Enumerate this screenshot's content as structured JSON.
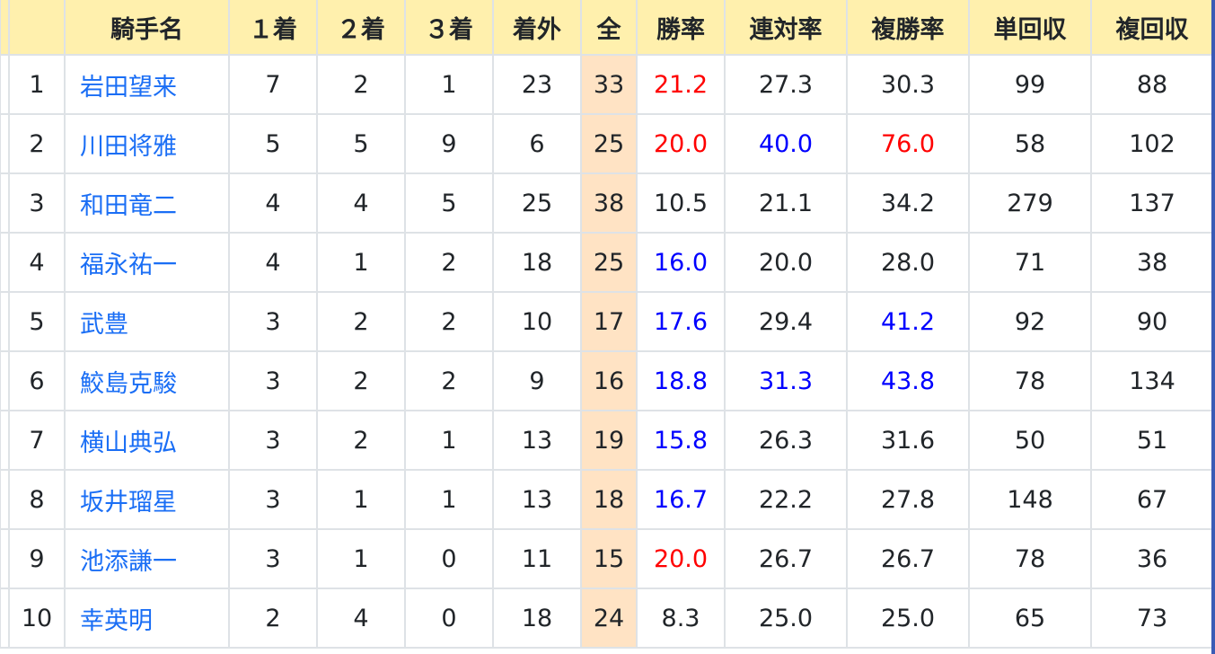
{
  "table": {
    "headers": [
      "",
      "騎手名",
      "１着",
      "２着",
      "３着",
      "着外",
      "全",
      "勝率",
      "連対率",
      "複勝率",
      "単回収",
      "複回収"
    ],
    "colors": {
      "red": "#ff0000",
      "blue": "#0000ff",
      "link": "#1a6ef5",
      "header_bg": "#fff0ad",
      "total_bg": "#ffe3c4"
    },
    "rows": [
      {
        "rank": "1",
        "name": "岩田望来",
        "w1": "7",
        "w2": "2",
        "w3": "1",
        "out": "23",
        "all": "33",
        "win": "21.2",
        "win_c": "red",
        "ren": "27.3",
        "ren_c": "",
        "fuku": "30.3",
        "fuku_c": "",
        "tan": "99",
        "fret": "88"
      },
      {
        "rank": "2",
        "name": "川田将雅",
        "w1": "5",
        "w2": "5",
        "w3": "9",
        "out": "6",
        "all": "25",
        "win": "20.0",
        "win_c": "red",
        "ren": "40.0",
        "ren_c": "blue",
        "fuku": "76.0",
        "fuku_c": "red",
        "tan": "58",
        "fret": "102"
      },
      {
        "rank": "3",
        "name": "和田竜二",
        "w1": "4",
        "w2": "4",
        "w3": "5",
        "out": "25",
        "all": "38",
        "win": "10.5",
        "win_c": "",
        "ren": "21.1",
        "ren_c": "",
        "fuku": "34.2",
        "fuku_c": "",
        "tan": "279",
        "fret": "137"
      },
      {
        "rank": "4",
        "name": "福永祐一",
        "w1": "4",
        "w2": "1",
        "w3": "2",
        "out": "18",
        "all": "25",
        "win": "16.0",
        "win_c": "blue",
        "ren": "20.0",
        "ren_c": "",
        "fuku": "28.0",
        "fuku_c": "",
        "tan": "71",
        "fret": "38"
      },
      {
        "rank": "5",
        "name": "武豊",
        "w1": "3",
        "w2": "2",
        "w3": "2",
        "out": "10",
        "all": "17",
        "win": "17.6",
        "win_c": "blue",
        "ren": "29.4",
        "ren_c": "",
        "fuku": "41.2",
        "fuku_c": "blue",
        "tan": "92",
        "fret": "90"
      },
      {
        "rank": "6",
        "name": "鮫島克駿",
        "w1": "3",
        "w2": "2",
        "w3": "2",
        "out": "9",
        "all": "16",
        "win": "18.8",
        "win_c": "blue",
        "ren": "31.3",
        "ren_c": "blue",
        "fuku": "43.8",
        "fuku_c": "blue",
        "tan": "78",
        "fret": "134"
      },
      {
        "rank": "7",
        "name": "横山典弘",
        "w1": "3",
        "w2": "2",
        "w3": "1",
        "out": "13",
        "all": "19",
        "win": "15.8",
        "win_c": "blue",
        "ren": "26.3",
        "ren_c": "",
        "fuku": "31.6",
        "fuku_c": "",
        "tan": "50",
        "fret": "51"
      },
      {
        "rank": "8",
        "name": "坂井瑠星",
        "w1": "3",
        "w2": "1",
        "w3": "1",
        "out": "13",
        "all": "18",
        "win": "16.7",
        "win_c": "blue",
        "ren": "22.2",
        "ren_c": "",
        "fuku": "27.8",
        "fuku_c": "",
        "tan": "148",
        "fret": "67"
      },
      {
        "rank": "9",
        "name": "池添謙一",
        "w1": "3",
        "w2": "1",
        "w3": "0",
        "out": "11",
        "all": "15",
        "win": "20.0",
        "win_c": "red",
        "ren": "26.7",
        "ren_c": "",
        "fuku": "26.7",
        "fuku_c": "",
        "tan": "78",
        "fret": "36"
      },
      {
        "rank": "10",
        "name": "幸英明",
        "w1": "2",
        "w2": "4",
        "w3": "0",
        "out": "18",
        "all": "24",
        "win": "8.3",
        "win_c": "",
        "ren": "25.0",
        "ren_c": "",
        "fuku": "25.0",
        "fuku_c": "",
        "tan": "65",
        "fret": "73"
      }
    ]
  }
}
